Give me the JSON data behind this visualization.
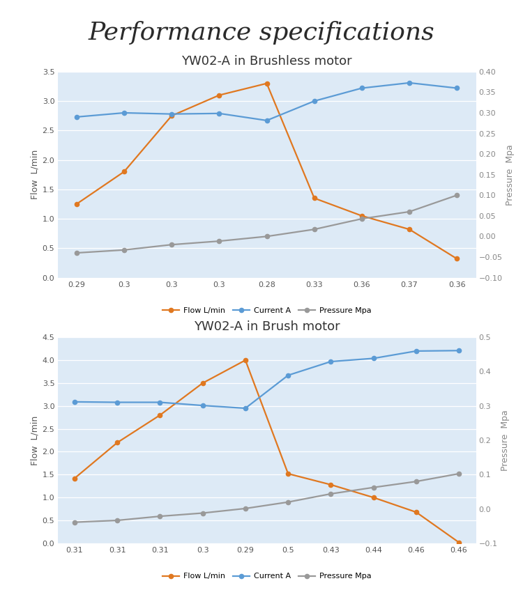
{
  "title": "Performance specifications",
  "title_fontsize": 26,
  "chart1_title": "YW02-A in Brushless motor",
  "chart2_title": "YW02-A in Brush motor",
  "chart_title_fontsize": 13,
  "bg_color": "#ddeaf6",
  "fig_bg": "#ffffff",
  "chart1": {
    "x_labels": [
      "0.29",
      "0.3",
      "0.3",
      "0.3",
      "0.28",
      "0.33",
      "0.36",
      "0.37",
      "0.36"
    ],
    "x": [
      0,
      1,
      2,
      3,
      4,
      5,
      6,
      7,
      8
    ],
    "flow": [
      1.25,
      1.8,
      2.75,
      3.1,
      3.3,
      1.35,
      1.05,
      0.82,
      0.32
    ],
    "current": [
      2.73,
      2.8,
      2.78,
      2.79,
      2.67,
      3.0,
      3.22,
      3.31,
      3.22
    ],
    "pressure_left": [
      0.42,
      0.47,
      0.56,
      0.62,
      0.7,
      0.82,
      1.0,
      1.12,
      1.4
    ],
    "ylim_left": [
      0,
      3.5
    ],
    "ylim_right": [
      -0.1,
      0.4
    ],
    "yticks_left": [
      0,
      0.5,
      1.0,
      1.5,
      2.0,
      2.5,
      3.0,
      3.5
    ],
    "yticks_right": [
      -0.1,
      -0.05,
      0.0,
      0.05,
      0.1,
      0.15,
      0.2,
      0.25,
      0.3,
      0.35,
      0.4
    ]
  },
  "chart2": {
    "x_labels": [
      "0.31",
      "0.31",
      "0.31",
      "0.3",
      "0.29",
      "0.5",
      "0.43",
      "0.44",
      "0.46",
      "0.46"
    ],
    "x": [
      0,
      1,
      2,
      3,
      4,
      5,
      6,
      7,
      8,
      9
    ],
    "flow": [
      1.42,
      2.2,
      2.8,
      3.5,
      4.0,
      1.52,
      1.28,
      1.0,
      0.68,
      0.02
    ],
    "current": [
      3.09,
      3.08,
      3.08,
      3.01,
      2.95,
      3.67,
      3.97,
      4.04,
      4.2,
      4.21
    ],
    "pressure_left": [
      0.46,
      0.5,
      0.59,
      0.66,
      0.76,
      0.9,
      1.08,
      1.22,
      1.35,
      1.52
    ],
    "ylim_left": [
      0,
      4.5
    ],
    "ylim_right": [
      -0.1,
      0.5
    ],
    "yticks_left": [
      0,
      0.5,
      1.0,
      1.5,
      2.0,
      2.5,
      3.0,
      3.5,
      4.0,
      4.5
    ],
    "yticks_right": [
      -0.1,
      0.0,
      0.1,
      0.2,
      0.3,
      0.4,
      0.5
    ]
  },
  "flow_color": "#e07820",
  "current_color": "#5b9bd5",
  "pressure_color": "#999999",
  "line_width": 1.6,
  "marker_size": 4.5,
  "ylabel_left": "Flow  L/min",
  "ylabel_right": "Pressure  Mpa",
  "legend_labels": [
    "Flow L/min",
    "Current A",
    "Pressure Mpa"
  ]
}
